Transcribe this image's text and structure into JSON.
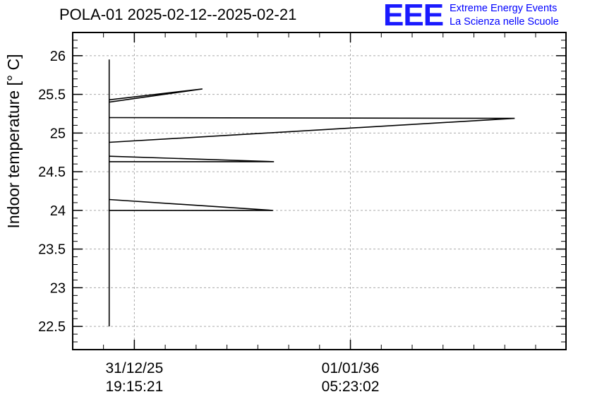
{
  "header": {
    "title": "POLA-01 2025-02-12--2025-02-21",
    "logo_mark": "EEE",
    "logo_line1": "Extreme Energy Events",
    "logo_line2": "La Scienza nelle Scuole"
  },
  "colors": {
    "logo": "#0000ff",
    "line": "#000000",
    "grid": "#aaaaaa"
  },
  "chart_data": {
    "type": "line",
    "title": "POLA-01 2025-02-12--2025-02-21",
    "ylabel": "Indoor temperature [° C]",
    "ylim": [
      22.2,
      26.3
    ],
    "yticks": [
      22.5,
      23,
      23.5,
      24,
      24.5,
      25,
      25.5,
      26
    ],
    "ytick_labels": [
      "22.5",
      "23",
      "23.5",
      "24",
      "24.5",
      "25",
      "25.5",
      "26"
    ],
    "xlim": [
      0,
      1
    ],
    "xticks": [
      {
        "pos": 0.125,
        "line1": "31/12/25",
        "line2": "19:15:21"
      },
      {
        "pos": 0.563,
        "line1": "01/01/36",
        "line2": "05:23:02"
      }
    ],
    "grid": true,
    "series": [
      {
        "x": [
          0.074,
          0.074,
          0.074,
          0.074,
          0.074,
          0.074,
          0.074,
          0.074,
          0.074,
          0.074,
          0.074,
          0.263,
          0.074,
          0.074,
          0.074,
          0.074,
          0.074,
          0.074,
          0.074,
          0.074,
          0.074,
          0.074,
          0.074,
          0.074,
          0.074,
          0.074,
          0.074,
          0.074,
          0.074,
          0.074,
          0.074,
          0.074,
          0.074,
          0.074,
          0.074,
          0.074
        ],
        "y": [
          22.5,
          25.95,
          25.4,
          25.6,
          25.55,
          25.3,
          25.2,
          25.1,
          25.0,
          25.2,
          25.4,
          25.57,
          25.43,
          25.2,
          25.0,
          24.9,
          24.8,
          24.7,
          24.6,
          24.5,
          24.4,
          24.3,
          24.2,
          24.1,
          24.0,
          23.9,
          23.85,
          24.0,
          24.2,
          24.4,
          24.6,
          24.8,
          25.0,
          25.2,
          25.4,
          25.6
        ]
      },
      {
        "x": [
          0.074,
          0.896,
          0.074
        ],
        "y": [
          25.2,
          25.19,
          24.88
        ]
      },
      {
        "x": [
          0.074,
          0.408,
          0.074
        ],
        "y": [
          24.7,
          24.63,
          24.63
        ]
      },
      {
        "x": [
          0.074,
          0.406,
          0.074
        ],
        "y": [
          24.14,
          24.0,
          24.0
        ]
      }
    ]
  }
}
